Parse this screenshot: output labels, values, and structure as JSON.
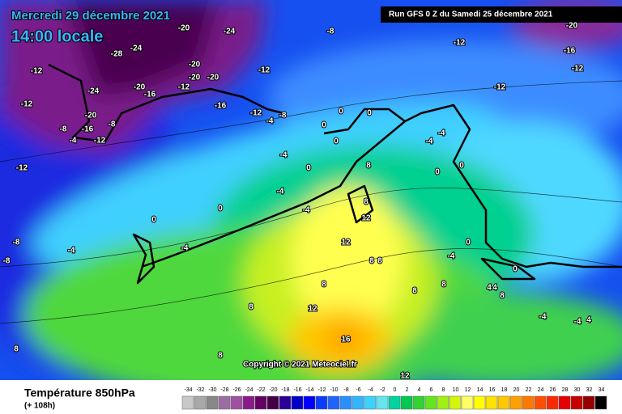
{
  "header": {
    "date": "Mercredi 29 décembre 2021",
    "time": "14:00 locale",
    "run": "Run GFS 0 Z du Samedi 25 décembre 2021"
  },
  "map": {
    "labels": [
      -12,
      -12,
      -12,
      -24,
      -20,
      -16,
      -8,
      -8,
      -12,
      -4,
      -28,
      -24,
      -20,
      -24,
      -20,
      -20,
      -20,
      -20,
      -16,
      -12,
      -16,
      -12,
      -8,
      -12,
      -12,
      -16,
      -20,
      -12,
      -12,
      -8,
      -4,
      -4,
      0,
      0,
      0,
      -4,
      -4,
      -4,
      -8,
      -8,
      -4,
      0,
      0,
      0,
      0,
      8,
      8,
      12,
      12,
      8,
      8,
      8,
      12,
      8,
      16,
      8,
      8,
      12,
      -4,
      0,
      0,
      4,
      4,
      -4,
      -4,
      4,
      8,
      8,
      -4,
      -4,
      0,
      0,
      8
    ],
    "copyright": "Copyright © 2021 Meteociel.fr"
  },
  "footer": {
    "title": "Température 850hPa",
    "subtitle": "(+ 108h)",
    "scale": {
      "ticks": [
        -34,
        -32,
        -30,
        -28,
        -26,
        -24,
        -22,
        -20,
        -18,
        -16,
        -14,
        -12,
        -10,
        -8,
        -6,
        -4,
        -2,
        0,
        2,
        4,
        6,
        8,
        10,
        12,
        14,
        16,
        18,
        20,
        22,
        24,
        26,
        28,
        30,
        32,
        34
      ],
      "colors": [
        "#c8c8c8",
        "#a8a8a8",
        "#888888",
        "#9a6ea0",
        "#a050a0",
        "#8a1a8a",
        "#640064",
        "#460046",
        "#2a0096",
        "#0000c8",
        "#0000ff",
        "#0a3cff",
        "#1e64ff",
        "#2890ff",
        "#32b4ff",
        "#3cd2ff",
        "#64e6f0",
        "#00d2a0",
        "#00c850",
        "#32d232",
        "#64e61e",
        "#a0f014",
        "#d2f50a",
        "#ffff64",
        "#ffff00",
        "#ffe100",
        "#ffc800",
        "#ffa000",
        "#ff7800",
        "#ff5000",
        "#ff2800",
        "#e60000",
        "#c80000",
        "#960000",
        "#000000"
      ]
    }
  }
}
